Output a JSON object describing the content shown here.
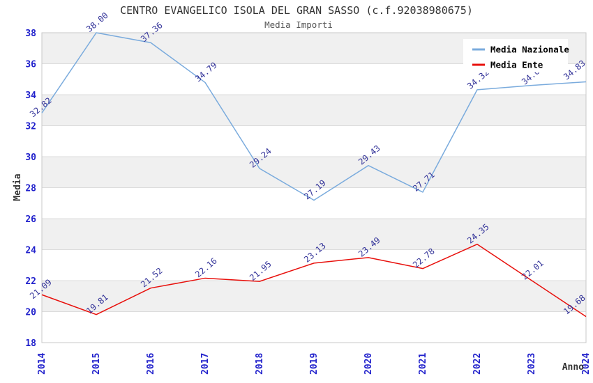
{
  "title": "CENTRO EVANGELICO ISOLA DEL GRAN SASSO (c.f.92038980675)",
  "subtitle": "Media Importi",
  "chart_data": {
    "type": "line",
    "x": [
      2014,
      2015,
      2016,
      2017,
      2018,
      2019,
      2020,
      2021,
      2022,
      2023,
      2024
    ],
    "xlabel": "Anno",
    "ylabel": "Media",
    "ylim": [
      18,
      38
    ],
    "ytick_step": 2,
    "grid": "horizontal gridlines with alternating gray bands every 2 units",
    "legend_position": "top-right",
    "point_labels": "each point labeled with value, 2 decimals, rotated -40deg",
    "series": [
      {
        "name": "Media Nazionale",
        "color": "#7AABDD",
        "values": [
          32.82,
          38.0,
          37.36,
          34.79,
          29.24,
          27.19,
          29.43,
          27.71,
          34.32,
          34.6,
          34.83
        ]
      },
      {
        "name": "Media Ente",
        "color": "#E8100C",
        "values": [
          21.09,
          19.81,
          21.52,
          22.16,
          21.95,
          23.13,
          23.49,
          22.78,
          24.35,
          22.01,
          19.68
        ]
      }
    ]
  },
  "colors": {
    "axis_tick_label": "#2222CC",
    "point_label": "#333399",
    "title": "#333333",
    "subtitle": "#555555",
    "band_fill": "#F0F0F0",
    "gridline": "#DCDCDC",
    "plot_border": "#C8C8C8",
    "axis_text": "#333333",
    "legend_bg": "#FFFFFF"
  }
}
